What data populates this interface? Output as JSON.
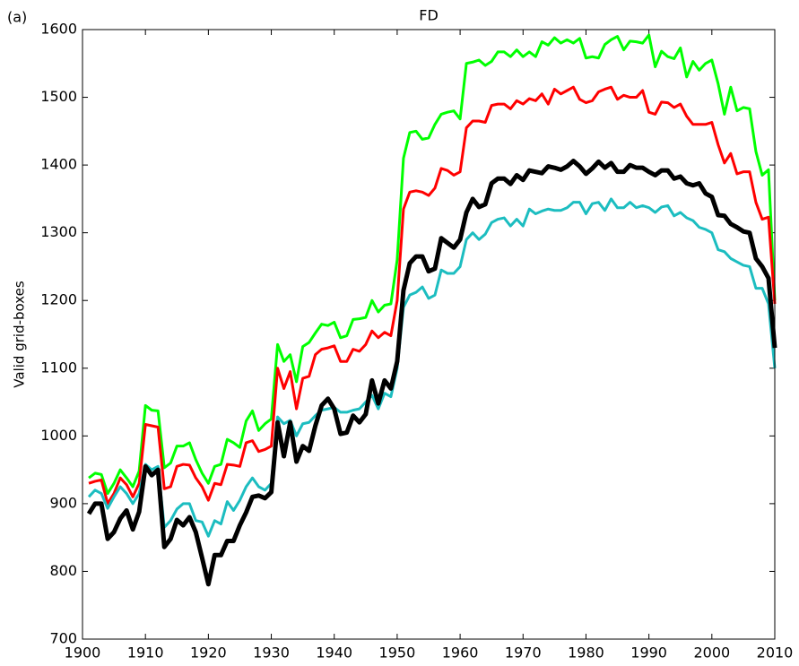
{
  "chart_data": {
    "type": "line",
    "title": "FD",
    "panel_label": "(a)",
    "y_label": "Valid grid-boxes",
    "x": [
      1901,
      1902,
      1903,
      1904,
      1905,
      1906,
      1907,
      1908,
      1909,
      1910,
      1911,
      1912,
      1913,
      1914,
      1915,
      1916,
      1917,
      1918,
      1919,
      1920,
      1921,
      1922,
      1923,
      1924,
      1925,
      1926,
      1927,
      1928,
      1929,
      1930,
      1931,
      1932,
      1933,
      1934,
      1935,
      1936,
      1937,
      1938,
      1939,
      1940,
      1941,
      1942,
      1943,
      1944,
      1945,
      1946,
      1947,
      1948,
      1949,
      1950,
      1951,
      1952,
      1953,
      1954,
      1955,
      1956,
      1957,
      1958,
      1959,
      1960,
      1961,
      1962,
      1963,
      1964,
      1965,
      1966,
      1967,
      1968,
      1969,
      1970,
      1971,
      1972,
      1973,
      1974,
      1975,
      1976,
      1977,
      1978,
      1979,
      1980,
      1981,
      1982,
      1983,
      1984,
      1985,
      1986,
      1987,
      1988,
      1989,
      1990,
      1991,
      1992,
      1993,
      1994,
      1995,
      1996,
      1997,
      1998,
      1999,
      2000,
      2001,
      2002,
      2003,
      2004,
      2005,
      2006,
      2007,
      2008,
      2009,
      2010
    ],
    "series": [
      {
        "color": "#00ff00",
        "linewidth": 3,
        "values": [
          938,
          945,
          943,
          915,
          930,
          950,
          938,
          925,
          948,
          1045,
          1038,
          1037,
          953,
          960,
          985,
          985,
          990,
          965,
          945,
          930,
          955,
          958,
          995,
          990,
          983,
          1022,
          1037,
          1008,
          1018,
          1025,
          1135,
          1110,
          1120,
          1080,
          1132,
          1138,
          1152,
          1165,
          1163,
          1168,
          1145,
          1148,
          1172,
          1173,
          1175,
          1200,
          1183,
          1193,
          1195,
          1260,
          1410,
          1448,
          1450,
          1438,
          1440,
          1460,
          1475,
          1478,
          1480,
          1468,
          1550,
          1552,
          1555,
          1547,
          1553,
          1567,
          1567,
          1560,
          1570,
          1560,
          1567,
          1560,
          1582,
          1577,
          1588,
          1580,
          1585,
          1580,
          1587,
          1558,
          1560,
          1558,
          1578,
          1585,
          1590,
          1570,
          1583,
          1582,
          1580,
          1592,
          1545,
          1568,
          1560,
          1557,
          1573,
          1530,
          1553,
          1540,
          1550,
          1555,
          1520,
          1475,
          1515,
          1480,
          1485,
          1483,
          1420,
          1385,
          1393,
          1200
        ]
      },
      {
        "color": "#ff0000",
        "linewidth": 3,
        "values": [
          930,
          933,
          935,
          900,
          915,
          938,
          928,
          910,
          930,
          1017,
          1015,
          1013,
          922,
          925,
          955,
          958,
          957,
          938,
          925,
          905,
          930,
          928,
          958,
          957,
          955,
          990,
          993,
          977,
          980,
          985,
          1100,
          1070,
          1095,
          1040,
          1085,
          1088,
          1120,
          1128,
          1130,
          1133,
          1110,
          1110,
          1128,
          1125,
          1135,
          1155,
          1145,
          1153,
          1148,
          1200,
          1335,
          1360,
          1362,
          1360,
          1355,
          1366,
          1395,
          1392,
          1385,
          1390,
          1455,
          1465,
          1465,
          1463,
          1488,
          1490,
          1490,
          1483,
          1495,
          1490,
          1498,
          1495,
          1505,
          1490,
          1512,
          1505,
          1510,
          1515,
          1497,
          1492,
          1495,
          1508,
          1512,
          1515,
          1497,
          1503,
          1500,
          1500,
          1510,
          1478,
          1475,
          1493,
          1492,
          1485,
          1490,
          1472,
          1460,
          1460,
          1460,
          1463,
          1430,
          1403,
          1417,
          1387,
          1390,
          1390,
          1345,
          1320,
          1323,
          1195
        ]
      },
      {
        "color": "#1cbdc0",
        "linewidth": 3,
        "values": [
          910,
          920,
          915,
          893,
          910,
          925,
          915,
          900,
          915,
          958,
          950,
          955,
          865,
          875,
          892,
          900,
          900,
          875,
          873,
          852,
          875,
          870,
          903,
          890,
          905,
          925,
          938,
          925,
          920,
          930,
          1028,
          1018,
          1023,
          1000,
          1018,
          1020,
          1030,
          1038,
          1040,
          1042,
          1035,
          1035,
          1038,
          1040,
          1050,
          1060,
          1040,
          1063,
          1058,
          1100,
          1190,
          1208,
          1212,
          1220,
          1203,
          1208,
          1245,
          1240,
          1240,
          1250,
          1290,
          1300,
          1290,
          1298,
          1315,
          1320,
          1322,
          1310,
          1320,
          1310,
          1335,
          1328,
          1332,
          1335,
          1333,
          1333,
          1337,
          1345,
          1345,
          1328,
          1343,
          1345,
          1333,
          1350,
          1337,
          1337,
          1345,
          1337,
          1340,
          1337,
          1330,
          1338,
          1340,
          1325,
          1330,
          1322,
          1318,
          1308,
          1305,
          1300,
          1275,
          1272,
          1262,
          1257,
          1252,
          1250,
          1218,
          1218,
          1195,
          1100
        ]
      },
      {
        "color": "#000000",
        "linewidth": 5,
        "values": [
          885,
          900,
          900,
          848,
          858,
          878,
          890,
          862,
          888,
          955,
          942,
          950,
          836,
          848,
          876,
          868,
          880,
          858,
          820,
          781,
          824,
          824,
          845,
          845,
          868,
          887,
          910,
          912,
          908,
          917,
          1020,
          970,
          1020,
          962,
          985,
          978,
          1015,
          1045,
          1055,
          1040,
          1003,
          1005,
          1030,
          1020,
          1032,
          1082,
          1048,
          1082,
          1070,
          1110,
          1215,
          1255,
          1265,
          1265,
          1243,
          1247,
          1292,
          1285,
          1278,
          1290,
          1330,
          1350,
          1338,
          1342,
          1373,
          1380,
          1380,
          1372,
          1385,
          1378,
          1392,
          1390,
          1388,
          1398,
          1396,
          1393,
          1398,
          1406,
          1398,
          1387,
          1395,
          1405,
          1396,
          1403,
          1390,
          1390,
          1400,
          1396,
          1396,
          1390,
          1385,
          1392,
          1392,
          1380,
          1383,
          1373,
          1370,
          1373,
          1358,
          1353,
          1326,
          1325,
          1313,
          1308,
          1302,
          1300,
          1262,
          1250,
          1233,
          1130
        ]
      }
    ],
    "xlim": [
      1900,
      2010
    ],
    "xticks": [
      1900,
      1910,
      1920,
      1930,
      1940,
      1950,
      1960,
      1970,
      1980,
      1990,
      2000,
      2010
    ],
    "ylim": [
      700,
      1600
    ],
    "yticks": [
      700,
      800,
      900,
      1000,
      1100,
      1200,
      1300,
      1400,
      1500,
      1600
    ],
    "grid": false
  }
}
